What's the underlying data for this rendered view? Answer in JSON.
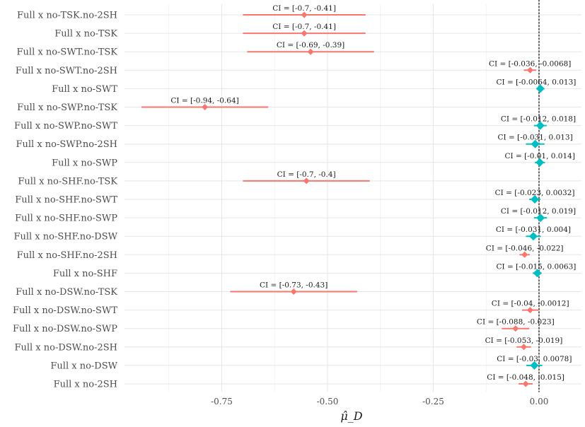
{
  "chart_data": {
    "type": "forest",
    "xlabel": "μ̂_D",
    "x_ticks": [
      -0.75,
      -0.5,
      -0.25,
      0.0
    ],
    "x_tick_labels": [
      "-0.75",
      "-0.50",
      "-0.25",
      "0.00"
    ],
    "xlim": [
      -0.97,
      0.1
    ],
    "reference_line": 0.0,
    "colors": {
      "significant": "#f8766d",
      "not_significant": "#00bfc4",
      "reference": "#555555"
    },
    "rows": [
      {
        "label": "Full x no-TSK.no-2SH",
        "estimate": -0.555,
        "ci_low": -0.7,
        "ci_high": -0.41,
        "ci_text": "CI = [-0.7, -0.41]",
        "significant": true
      },
      {
        "label": "Full x no-TSK",
        "estimate": -0.555,
        "ci_low": -0.7,
        "ci_high": -0.41,
        "ci_text": "CI = [-0.7, -0.41]",
        "significant": true
      },
      {
        "label": "Full x no-SWT.no-TSK",
        "estimate": -0.54,
        "ci_low": -0.69,
        "ci_high": -0.39,
        "ci_text": "CI = [-0.69, -0.39]",
        "significant": true
      },
      {
        "label": "Full x no-SWT.no-2SH",
        "estimate": -0.021,
        "ci_low": -0.036,
        "ci_high": -0.0068,
        "ci_text": "CI = [-0.036, -0.0068]",
        "significant": true
      },
      {
        "label": "Full x no-SWT",
        "estimate": 0.003,
        "ci_low": -0.0064,
        "ci_high": 0.013,
        "ci_text": "CI = [-0.0064, 0.013]",
        "significant": false
      },
      {
        "label": "Full x no-SWP.no-TSK",
        "estimate": -0.79,
        "ci_low": -0.94,
        "ci_high": -0.64,
        "ci_text": "CI = [-0.94, -0.64]",
        "significant": true
      },
      {
        "label": "Full x no-SWP.no-SWT",
        "estimate": 0.003,
        "ci_low": -0.012,
        "ci_high": 0.018,
        "ci_text": "CI = [-0.012, 0.018]",
        "significant": false
      },
      {
        "label": "Full x no-SWP.no-2SH",
        "estimate": -0.009,
        "ci_low": -0.031,
        "ci_high": 0.013,
        "ci_text": "CI = [-0.031, 0.013]",
        "significant": false
      },
      {
        "label": "Full x no-SWP",
        "estimate": 0.002,
        "ci_low": -0.01,
        "ci_high": 0.014,
        "ci_text": "CI = [-0.01, 0.014]",
        "significant": false
      },
      {
        "label": "Full x no-SHF.no-TSK",
        "estimate": -0.55,
        "ci_low": -0.7,
        "ci_high": -0.4,
        "ci_text": "CI = [-0.7, -0.4]",
        "significant": true
      },
      {
        "label": "Full x no-SHF.no-SWT",
        "estimate": -0.01,
        "ci_low": -0.023,
        "ci_high": 0.0032,
        "ci_text": "CI = [-0.023, 0.0032]",
        "significant": false
      },
      {
        "label": "Full x no-SHF.no-SWP",
        "estimate": 0.0035,
        "ci_low": -0.012,
        "ci_high": 0.019,
        "ci_text": "CI = [-0.012, 0.019]",
        "significant": false
      },
      {
        "label": "Full x no-SHF.no-DSW",
        "estimate": -0.0135,
        "ci_low": -0.031,
        "ci_high": 0.004,
        "ci_text": "CI = [-0.031, 0.004]",
        "significant": false
      },
      {
        "label": "Full x no-SHF.no-2SH",
        "estimate": -0.034,
        "ci_low": -0.046,
        "ci_high": -0.022,
        "ci_text": "CI = [-0.046, -0.022]",
        "significant": true
      },
      {
        "label": "Full x no-SHF",
        "estimate": -0.004,
        "ci_low": -0.015,
        "ci_high": 0.0063,
        "ci_text": "CI = [-0.015, 0.0063]",
        "significant": false
      },
      {
        "label": "Full x no-DSW.no-TSK",
        "estimate": -0.58,
        "ci_low": -0.73,
        "ci_high": -0.43,
        "ci_text": "CI = [-0.73, -0.43]",
        "significant": true
      },
      {
        "label": "Full x no-DSW.no-SWT",
        "estimate": -0.021,
        "ci_low": -0.04,
        "ci_high": -0.0012,
        "ci_text": "CI = [-0.04, -0.0012]",
        "significant": true
      },
      {
        "label": "Full x no-DSW.no-SWP",
        "estimate": -0.0555,
        "ci_low": -0.088,
        "ci_high": -0.023,
        "ci_text": "CI = [-0.088, -0.023]",
        "significant": true
      },
      {
        "label": "Full x no-DSW.no-2SH",
        "estimate": -0.036,
        "ci_low": -0.053,
        "ci_high": -0.019,
        "ci_text": "CI = [-0.053, -0.019]",
        "significant": true
      },
      {
        "label": "Full x no-DSW",
        "estimate": -0.011,
        "ci_low": -0.03,
        "ci_high": 0.0078,
        "ci_text": "CI = [-0.03, 0.0078]",
        "significant": false
      },
      {
        "label": "Full x no-2SH",
        "estimate": -0.0315,
        "ci_low": -0.048,
        "ci_high": -0.015,
        "ci_text": "CI = [-0.048, -0.015]",
        "significant": true
      }
    ]
  }
}
